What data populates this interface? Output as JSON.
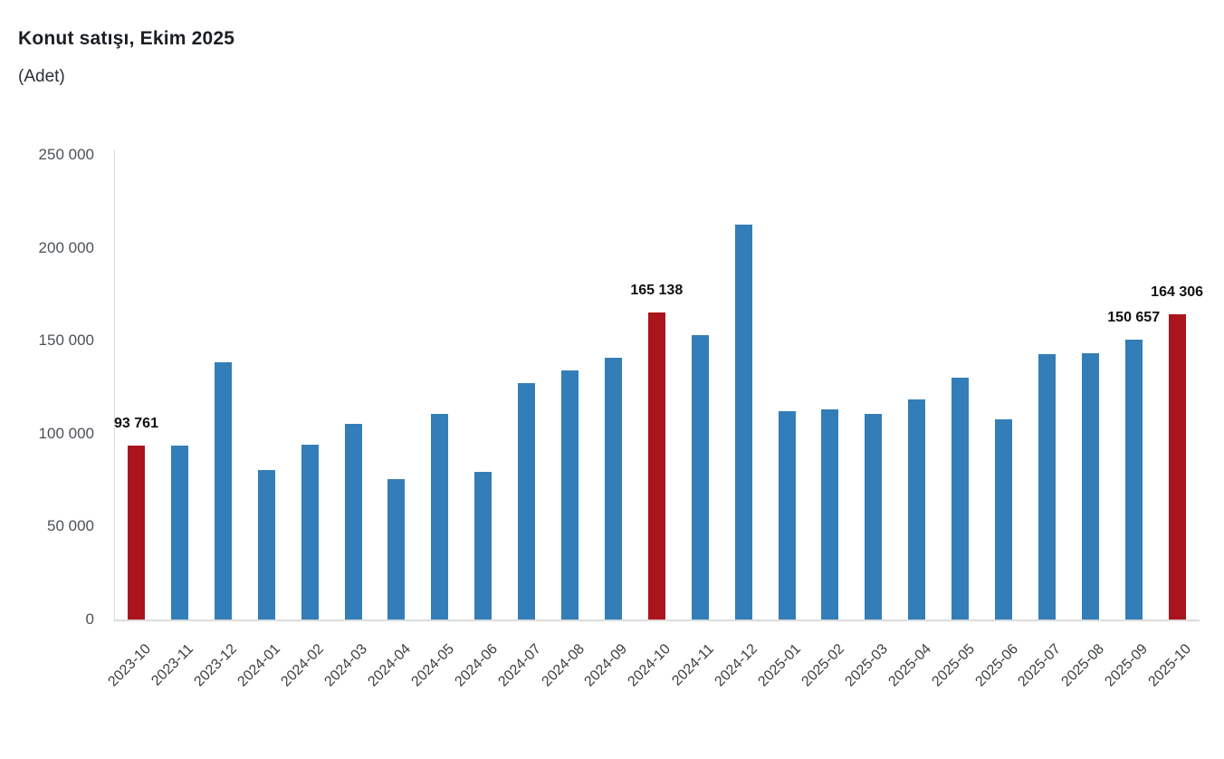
{
  "chart_data": {
    "type": "bar",
    "title": "Konut satışı, Ekim 2025",
    "subtitle": "(Adet)",
    "categories": [
      "2023-10",
      "2023-11",
      "2023-12",
      "2024-01",
      "2024-02",
      "2024-03",
      "2024-04",
      "2024-05",
      "2024-06",
      "2024-07",
      "2024-08",
      "2024-09",
      "2024-10",
      "2024-11",
      "2024-12",
      "2025-01",
      "2025-02",
      "2025-03",
      "2025-04",
      "2025-05",
      "2025-06",
      "2025-07",
      "2025-08",
      "2025-09",
      "2025-10"
    ],
    "values": [
      93761,
      93514,
      138577,
      80308,
      93902,
      105476,
      75569,
      110588,
      79313,
      127088,
      134155,
      140919,
      165138,
      153129,
      212637,
      112173,
      112818,
      110795,
      118359,
      130025,
      107723,
      142858,
      143319,
      150657,
      164306
    ],
    "data_labels": {
      "2023-10": "93 761",
      "2024-10": "165 138",
      "2025-09": "150 657",
      "2025-10": "164 306"
    },
    "highlighted_categories": [
      "2023-10",
      "2024-10",
      "2025-10"
    ],
    "yticks": [
      {
        "value": 0,
        "label": "0"
      },
      {
        "value": 50000,
        "label": "50 000"
      },
      {
        "value": 100000,
        "label": "100 000"
      },
      {
        "value": 150000,
        "label": "150 000"
      },
      {
        "value": 200000,
        "label": "200 000"
      },
      {
        "value": 250000,
        "label": "250 000"
      }
    ],
    "ylim": [
      0,
      250000
    ],
    "grid": false,
    "legend": false,
    "colors": {
      "bar": "#337EB8",
      "highlight": "#AA141C",
      "axis_line": "#DCDCDC",
      "tick_text": "#4C5258",
      "xlabel_text": "#3C4043",
      "data_label_text": "#111111",
      "title_text": "#1B1F24"
    }
  }
}
